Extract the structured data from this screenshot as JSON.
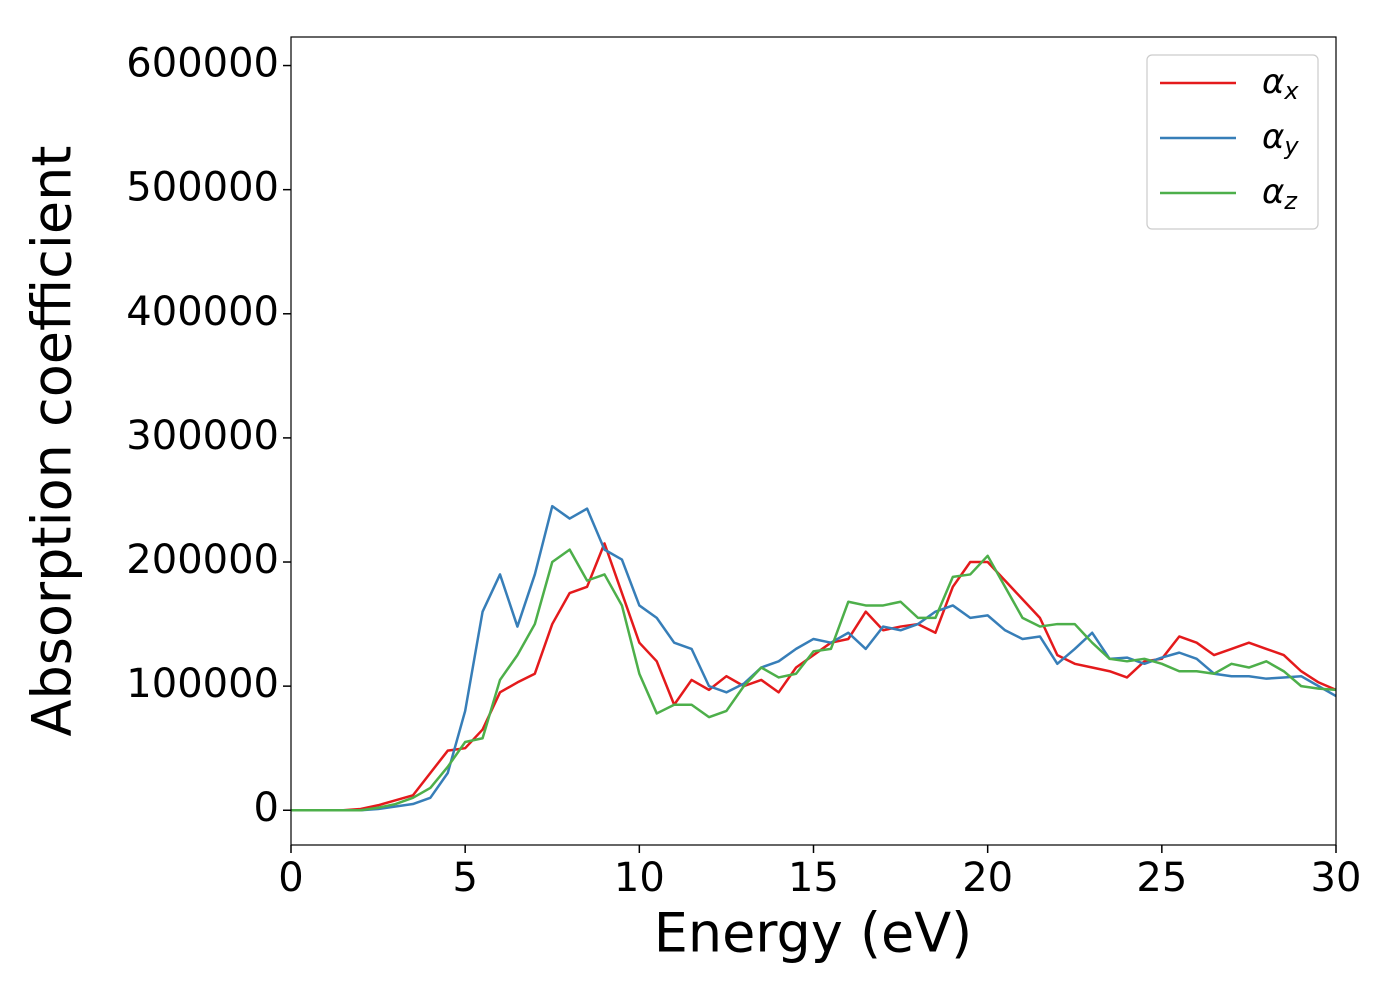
{
  "chart_data": {
    "type": "line",
    "xlabel": "Energy (eV)",
    "ylabel": "Absorption coefficient",
    "x": [
      0,
      0.5,
      1,
      1.5,
      2,
      2.5,
      3,
      3.5,
      4,
      4.5,
      5,
      5.5,
      6,
      6.5,
      7,
      7.5,
      8,
      8.5,
      9,
      9.5,
      10,
      10.5,
      11,
      11.5,
      12,
      12.5,
      13,
      13.5,
      14,
      14.5,
      15,
      15.5,
      16,
      16.5,
      17,
      17.5,
      18,
      18.5,
      19,
      19.5,
      20,
      20.5,
      21,
      21.5,
      22,
      22.5,
      23,
      23.5,
      24,
      24.5,
      25,
      25.5,
      26,
      26.5,
      27,
      27.5,
      28,
      28.5,
      29,
      29.5,
      30
    ],
    "series": [
      {
        "name": "αx",
        "color": "#e41a1c",
        "values": [
          0,
          0,
          0,
          0,
          1000,
          4000,
          8000,
          12000,
          30000,
          48000,
          50000,
          65000,
          95000,
          103000,
          110000,
          150000,
          175000,
          180000,
          215000,
          175000,
          135000,
          120000,
          85000,
          105000,
          97000,
          108000,
          100000,
          105000,
          95000,
          115000,
          125000,
          135000,
          138000,
          160000,
          145000,
          148000,
          150000,
          143000,
          180000,
          200000,
          200000,
          185000,
          170000,
          155000,
          125000,
          118000,
          115000,
          112000,
          107000,
          120000,
          122000,
          140000,
          135000,
          125000,
          130000,
          135000,
          130000,
          125000,
          112000,
          103000,
          97000
        ]
      },
      {
        "name": "αy",
        "color": "#377eb8",
        "values": [
          0,
          0,
          0,
          0,
          0,
          1000,
          3000,
          5000,
          10000,
          30000,
          80000,
          160000,
          190000,
          148000,
          190000,
          245000,
          235000,
          243000,
          210000,
          202000,
          165000,
          155000,
          135000,
          130000,
          100000,
          95000,
          102000,
          115000,
          120000,
          130000,
          138000,
          135000,
          143000,
          130000,
          148000,
          145000,
          150000,
          160000,
          165000,
          155000,
          157000,
          145000,
          138000,
          140000,
          118000,
          130000,
          143000,
          122000,
          123000,
          118000,
          123000,
          127000,
          122000,
          110000,
          108000,
          108000,
          106000,
          107000,
          108000,
          100000,
          92000
        ]
      },
      {
        "name": "αz",
        "color": "#4daf4a",
        "values": [
          0,
          0,
          0,
          0,
          0,
          2000,
          5000,
          10000,
          18000,
          35000,
          55000,
          58000,
          105000,
          125000,
          150000,
          200000,
          210000,
          185000,
          190000,
          165000,
          110000,
          78000,
          85000,
          85000,
          75000,
          80000,
          100000,
          115000,
          107000,
          110000,
          128000,
          130000,
          168000,
          165000,
          165000,
          168000,
          155000,
          155000,
          188000,
          190000,
          205000,
          180000,
          155000,
          148000,
          150000,
          150000,
          135000,
          122000,
          120000,
          122000,
          118000,
          112000,
          112000,
          110000,
          118000,
          115000,
          120000,
          112000,
          100000,
          98000,
          97000
        ]
      }
    ],
    "xlim": [
      0,
      30
    ],
    "xticks": [
      0,
      5,
      10,
      15,
      20,
      25,
      30
    ],
    "ylim": [
      -28000,
      623000
    ],
    "yticks": [
      0,
      100000,
      200000,
      300000,
      400000,
      500000,
      600000
    ],
    "legend": "upper right"
  }
}
